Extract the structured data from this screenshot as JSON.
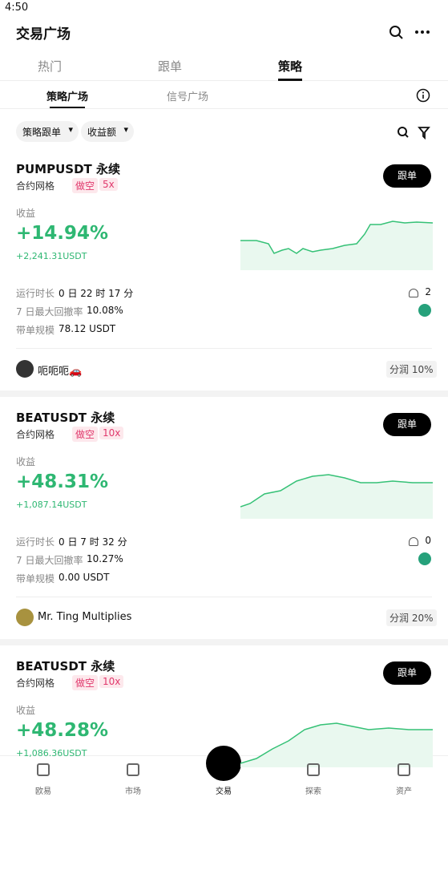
{
  "status": {
    "time": "4:50"
  },
  "header": {
    "title": "交易广场"
  },
  "tabs": {
    "items": [
      "热门",
      "跟单",
      "策略"
    ],
    "active": 2
  },
  "subtabs": {
    "items": [
      "策略广场",
      "信号广场"
    ],
    "active": 0
  },
  "filters": [
    "策略跟单",
    "收益额"
  ],
  "cards": [
    {
      "pair": "PUMPUSDT 永续",
      "type_tag": "合约网格",
      "side": "做空",
      "leverage": "5x",
      "button": "跟单",
      "pnl_label": "收益",
      "pnl_pct": "+14.94%",
      "pnl_amt": "+2,241.31USDT",
      "runtime_label": "运行时长",
      "runtime": "0 日 22 时 17 分",
      "followers": "2",
      "drawdown_label": "7 日最大回撤率",
      "drawdown": "10.08%",
      "scale_label": "带单规模",
      "scale": "78.12 USDT",
      "user": "呃呃呃🚗",
      "share": "分润 10%"
    },
    {
      "pair": "BEATUSDT 永续",
      "type_tag": "合约网格",
      "side": "做空",
      "leverage": "10x",
      "button": "跟单",
      "pnl_label": "收益",
      "pnl_pct": "+48.31%",
      "pnl_amt": "+1,087.14USDT",
      "runtime_label": "运行时长",
      "runtime": "0 日 7 时 32 分",
      "followers": "0",
      "drawdown_label": "7 日最大回撤率",
      "drawdown": "10.27%",
      "scale_label": "带单规模",
      "scale": "0.00 USDT",
      "user": "Mr. Ting Multiplies",
      "share": "分润 20%"
    },
    {
      "pair": "BEATUSDT 永续",
      "type_tag": "合约网格",
      "side": "做空",
      "leverage": "10x",
      "button": "跟单",
      "pnl_label": "收益",
      "pnl_pct": "+48.28%",
      "pnl_amt": "+1,086.36USDT"
    }
  ],
  "nav": {
    "items": [
      "欧易",
      "市场",
      "交易",
      "探索",
      "资产"
    ],
    "active": 2
  }
}
